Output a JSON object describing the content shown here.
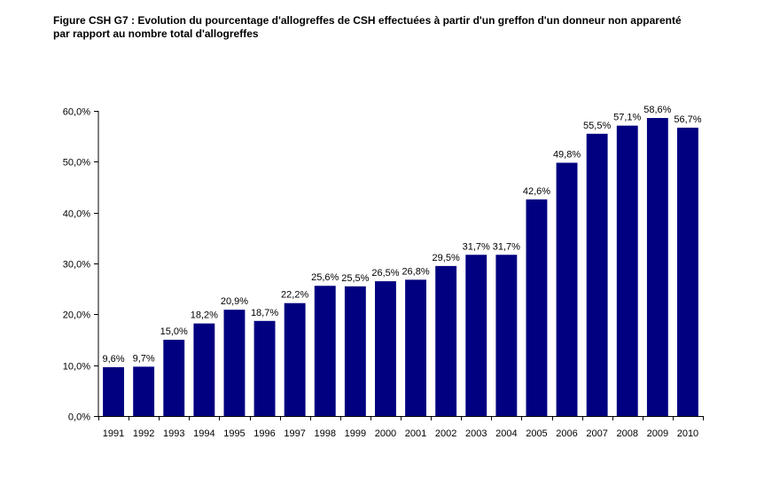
{
  "title_line1": "Figure CSH G7 : Evolution du pourcentage d'allogreffes de CSH effectuées à partir d'un greffon d'un donneur non apparenté",
  "title_line2": "par rapport au nombre total d'allogreffes",
  "chart_data": {
    "type": "bar",
    "title": "Figure CSH G7 : Evolution du pourcentage d'allogreffes de CSH effectuées à partir d'un greffon d'un donneur non apparenté par rapport au nombre total d'allogreffes",
    "xlabel": "",
    "ylabel": "",
    "categories": [
      "1991",
      "1992",
      "1993",
      "1994",
      "1995",
      "1996",
      "1997",
      "1998",
      "1999",
      "2000",
      "2001",
      "2002",
      "2003",
      "2004",
      "2005",
      "2006",
      "2007",
      "2008",
      "2009",
      "2010"
    ],
    "values": [
      9.6,
      9.7,
      15.0,
      18.2,
      20.9,
      18.7,
      22.2,
      25.6,
      25.5,
      26.5,
      26.8,
      29.5,
      31.7,
      31.7,
      42.6,
      49.8,
      55.5,
      57.1,
      58.6,
      56.7
    ],
    "data_labels": [
      "9,6%",
      "9,7%",
      "15,0%",
      "18,2%",
      "20,9%",
      "18,7%",
      "22,2%",
      "25,6%",
      "25,5%",
      "26,5%",
      "26,8%",
      "29,5%",
      "31,7%",
      "31,7%",
      "42,6%",
      "49,8%",
      "55,5%",
      "57,1%",
      "58,6%",
      "56,7%"
    ],
    "ylim": [
      0,
      60
    ],
    "y_ticks": [
      0,
      10,
      20,
      30,
      40,
      50,
      60
    ],
    "y_tick_labels": [
      "0,0%",
      "10,0%",
      "20,0%",
      "30,0%",
      "40,0%",
      "50,0%",
      "60,0%"
    ],
    "bar_color": "#000080",
    "grid": false,
    "legend": "none"
  }
}
